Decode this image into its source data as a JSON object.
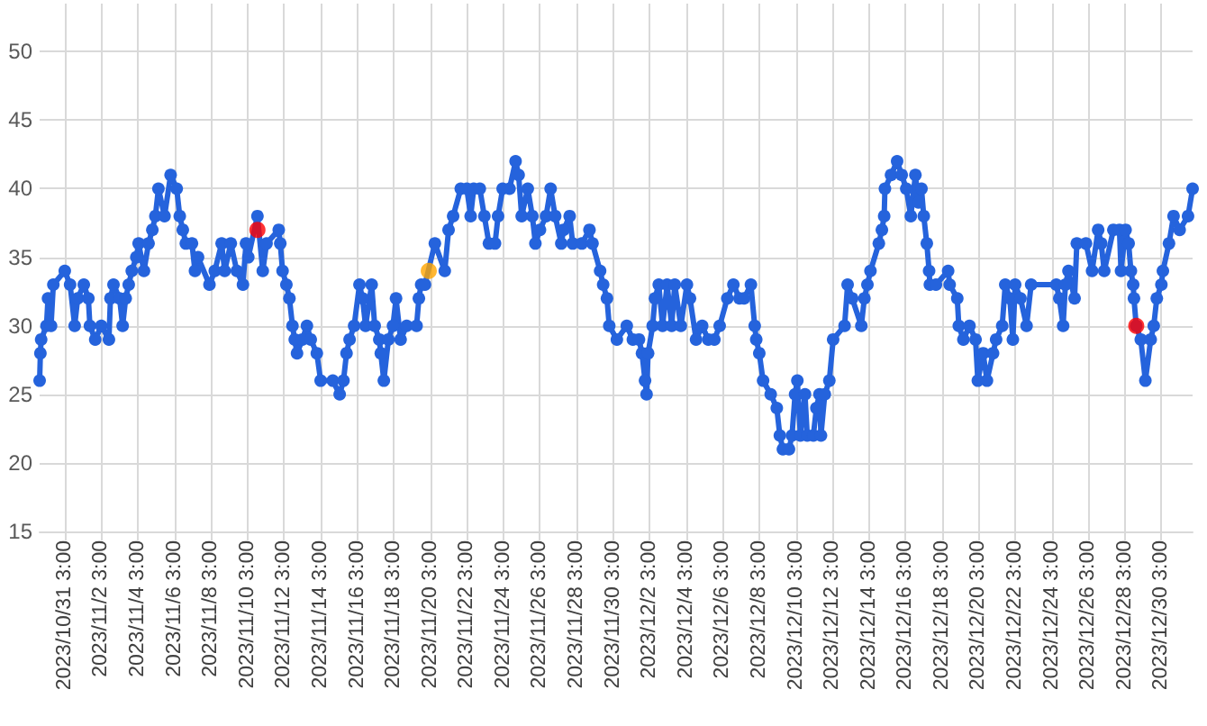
{
  "chart_data": {
    "type": "line",
    "grid": true,
    "marker": "circle",
    "line_style": "solid",
    "xlim": [
      "2023-10-29T18:00",
      "2023-12-31T20:00"
    ],
    "xticks": [
      {
        "value": "2023-10-31T03:00",
        "label": "2023/10/31 3:00"
      },
      {
        "value": "2023-11-02T03:00",
        "label": "2023/11/2 3:00"
      },
      {
        "value": "2023-11-04T03:00",
        "label": "2023/11/4 3:00"
      },
      {
        "value": "2023-11-06T03:00",
        "label": "2023/11/6 3:00"
      },
      {
        "value": "2023-11-08T03:00",
        "label": "2023/11/8 3:00"
      },
      {
        "value": "2023-11-10T03:00",
        "label": "2023/11/10 3:00"
      },
      {
        "value": "2023-11-12T03:00",
        "label": "2023/11/12 3:00"
      },
      {
        "value": "2023-11-14T03:00",
        "label": "2023/11/14 3:00"
      },
      {
        "value": "2023-11-16T03:00",
        "label": "2023/11/16 3:00"
      },
      {
        "value": "2023-11-18T03:00",
        "label": "2023/11/18 3:00"
      },
      {
        "value": "2023-11-20T03:00",
        "label": "2023/11/20 3:00"
      },
      {
        "value": "2023-11-22T03:00",
        "label": "2023/11/22 3:00"
      },
      {
        "value": "2023-11-24T03:00",
        "label": "2023/11/24 3:00"
      },
      {
        "value": "2023-11-26T03:00",
        "label": "2023/11/26 3:00"
      },
      {
        "value": "2023-11-28T03:00",
        "label": "2023/11/28 3:00"
      },
      {
        "value": "2023-11-30T03:00",
        "label": "2023/11/30 3:00"
      },
      {
        "value": "2023-12-02T03:00",
        "label": "2023/12/2 3:00"
      },
      {
        "value": "2023-12-04T03:00",
        "label": "2023/12/4 3:00"
      },
      {
        "value": "2023-12-06T03:00",
        "label": "2023/12/6 3:00"
      },
      {
        "value": "2023-12-08T03:00",
        "label": "2023/12/8 3:00"
      },
      {
        "value": "2023-12-10T03:00",
        "label": "2023/12/10 3:00"
      },
      {
        "value": "2023-12-12T03:00",
        "label": "2023/12/12 3:00"
      },
      {
        "value": "2023-12-14T03:00",
        "label": "2023/12/14 3:00"
      },
      {
        "value": "2023-12-16T03:00",
        "label": "2023/12/16 3:00"
      },
      {
        "value": "2023-12-18T03:00",
        "label": "2023/12/18 3:00"
      },
      {
        "value": "2023-12-20T03:00",
        "label": "2023/12/20 3:00"
      },
      {
        "value": "2023-12-22T03:00",
        "label": "2023/12/22 3:00"
      },
      {
        "value": "2023-12-24T03:00",
        "label": "2023/12/24 3:00"
      },
      {
        "value": "2023-12-26T03:00",
        "label": "2023/12/26 3:00"
      },
      {
        "value": "2023-12-28T03:00",
        "label": "2023/12/28 3:00"
      },
      {
        "value": "2023-12-30T03:00",
        "label": "2023/12/30 3:00"
      }
    ],
    "ylim": [
      15,
      53.5
    ],
    "yticks": [
      15,
      20,
      25,
      30,
      35,
      40,
      45,
      50
    ],
    "series": [
      {
        "color": "#2563dc",
        "x": [
          "2023-10-29T18:00",
          "2023-10-29T19:00",
          "2023-10-29T20:00",
          "2023-10-30T03:00",
          "2023-10-30T05:00",
          "2023-10-30T09:00",
          "2023-10-30T12:00",
          "2023-10-31T03:00",
          "2023-10-31T10:00",
          "2023-10-31T16:00",
          "2023-10-31T20:00",
          "2023-11-01T04:00",
          "2023-11-01T10:00",
          "2023-11-01T12:00",
          "2023-11-01T19:00",
          "2023-11-02T03:00",
          "2023-11-02T13:00",
          "2023-11-02T15:00",
          "2023-11-02T19:00",
          "2023-11-03T03:00",
          "2023-11-03T07:00",
          "2023-11-03T11:00",
          "2023-11-03T15:00",
          "2023-11-03T19:00",
          "2023-11-04T01:00",
          "2023-11-04T04:00",
          "2023-11-04T11:00",
          "2023-11-04T17:00",
          "2023-11-04T22:00",
          "2023-11-05T02:00",
          "2023-11-05T06:00",
          "2023-11-05T14:00",
          "2023-11-05T22:00",
          "2023-11-06T06:00",
          "2023-11-06T10:00",
          "2023-11-06T14:00",
          "2023-11-06T18:00",
          "2023-11-07T02:00",
          "2023-11-07T06:00",
          "2023-11-07T10:00",
          "2023-11-08T01:00",
          "2023-11-08T08:00",
          "2023-11-08T17:00",
          "2023-11-08T21:00",
          "2023-11-09T05:00",
          "2023-11-09T13:00",
          "2023-11-09T21:00",
          "2023-11-10T01:00",
          "2023-11-10T04:00",
          "2023-11-10T16:00",
          "2023-11-10T23:00",
          "2023-11-11T04:00",
          "2023-11-11T20:00",
          "2023-11-11T22:00",
          "2023-11-12T01:00",
          "2023-11-12T06:00",
          "2023-11-12T10:00",
          "2023-11-12T14:00",
          "2023-11-12T17:00",
          "2023-11-12T20:00",
          "2023-11-13T03:00",
          "2023-11-13T09:00",
          "2023-11-13T14:00",
          "2023-11-13T22:00",
          "2023-11-14T03:00",
          "2023-11-14T19:00",
          "2023-11-15T04:00",
          "2023-11-15T09:00",
          "2023-11-15T13:00",
          "2023-11-15T17:00",
          "2023-11-15T23:00",
          "2023-11-16T06:00",
          "2023-11-16T10:00",
          "2023-11-16T14:00",
          "2023-11-16T22:00",
          "2023-11-17T02:00",
          "2023-11-17T08:00",
          "2023-11-17T10:00",
          "2023-11-17T14:00",
          "2023-11-17T20:00",
          "2023-11-18T02:00",
          "2023-11-18T06:00",
          "2023-11-18T12:00",
          "2023-11-18T20:00",
          "2023-11-19T09:00",
          "2023-11-19T12:00",
          "2023-11-19T15:00",
          "2023-11-19T20:00",
          "2023-11-20T09:00",
          "2023-11-20T22:00",
          "2023-11-21T03:00",
          "2023-11-21T09:00",
          "2023-11-21T19:00",
          "2023-11-22T03:00",
          "2023-11-22T08:00",
          "2023-11-22T12:00",
          "2023-11-22T20:00",
          "2023-11-23T02:00",
          "2023-11-23T08:00",
          "2023-11-23T16:00",
          "2023-11-23T20:00",
          "2023-11-24T02:00",
          "2023-11-24T11:00",
          "2023-11-24T19:00",
          "2023-11-24T23:00",
          "2023-11-25T03:00",
          "2023-11-25T11:00",
          "2023-11-25T17:00",
          "2023-11-25T21:00",
          "2023-11-26T03:00",
          "2023-11-26T11:00",
          "2023-11-26T17:00",
          "2023-11-26T23:00",
          "2023-11-27T07:00",
          "2023-11-27T10:00",
          "2023-11-27T18:00",
          "2023-11-27T22:00",
          "2023-11-28T10:00",
          "2023-11-28T20:00",
          "2023-11-29T00:00",
          "2023-11-29T10:00",
          "2023-11-29T14:00",
          "2023-11-29T19:00",
          "2023-11-29T22:00",
          "2023-11-30T08:00",
          "2023-11-30T21:00",
          "2023-12-01T05:00",
          "2023-12-01T13:00",
          "2023-12-01T17:00",
          "2023-12-01T21:00",
          "2023-12-01T23:00",
          "2023-12-02T01:00",
          "2023-12-02T07:00",
          "2023-12-02T10:00",
          "2023-12-02T15:00",
          "2023-12-02T20:00",
          "2023-12-03T02:00",
          "2023-12-03T08:00",
          "2023-12-03T12:00",
          "2023-12-03T20:00",
          "2023-12-04T04:00",
          "2023-12-04T08:00",
          "2023-12-04T16:00",
          "2023-12-05T00:00",
          "2023-12-05T08:00",
          "2023-12-05T16:00",
          "2023-12-05T23:00",
          "2023-12-06T09:00",
          "2023-12-06T17:00",
          "2023-12-07T01:00",
          "2023-12-07T07:00",
          "2023-12-07T16:00",
          "2023-12-07T21:00",
          "2023-12-07T23:00",
          "2023-12-08T03:00",
          "2023-12-08T08:00",
          "2023-12-08T18:00",
          "2023-12-09T02:00",
          "2023-12-09T06:00",
          "2023-12-09T10:00",
          "2023-12-09T18:00",
          "2023-12-09T22:00",
          "2023-12-10T02:00",
          "2023-12-10T05:00",
          "2023-12-10T09:00",
          "2023-12-10T15:00",
          "2023-12-10T18:00",
          "2023-12-11T02:00",
          "2023-12-11T06:00",
          "2023-12-11T10:00",
          "2023-12-11T12:00",
          "2023-12-11T17:00",
          "2023-12-11T23:00",
          "2023-12-12T04:00",
          "2023-12-12T19:00",
          "2023-12-12T23:00",
          "2023-12-13T05:00",
          "2023-12-13T17:00",
          "2023-12-13T21:00",
          "2023-12-14T01:00",
          "2023-12-14T05:00",
          "2023-12-14T16:00",
          "2023-12-14T20:00",
          "2023-12-14T23:00",
          "2023-12-15T00:00",
          "2023-12-15T08:00",
          "2023-12-15T16:00",
          "2023-12-15T22:00",
          "2023-12-16T04:00",
          "2023-12-16T10:00",
          "2023-12-16T16:00",
          "2023-12-16T20:00",
          "2023-12-17T00:00",
          "2023-12-17T03:00",
          "2023-12-17T07:00",
          "2023-12-17T10:00",
          "2023-12-17T11:00",
          "2023-12-17T19:00",
          "2023-12-18T11:00",
          "2023-12-18T13:00",
          "2023-12-18T23:00",
          "2023-12-19T01:00",
          "2023-12-19T07:00",
          "2023-12-19T15:00",
          "2023-12-19T23:00",
          "2023-12-20T02:00",
          "2023-12-20T09:00",
          "2023-12-20T14:00",
          "2023-12-20T22:00",
          "2023-12-21T02:00",
          "2023-12-21T10:00",
          "2023-12-21T14:00",
          "2023-12-21T20:00",
          "2023-12-22T00:00",
          "2023-12-22T03:00",
          "2023-12-22T10:00",
          "2023-12-22T18:00",
          "2023-12-23T00:00",
          "2023-12-24T09:00",
          "2023-12-24T13:00",
          "2023-12-24T18:00",
          "2023-12-24T21:00",
          "2023-12-25T01:00",
          "2023-12-25T09:00",
          "2023-12-25T12:00",
          "2023-12-26T00:00",
          "2023-12-26T08:00",
          "2023-12-26T16:00",
          "2023-12-26T20:00",
          "2023-12-27T00:00",
          "2023-12-27T12:00",
          "2023-12-27T20:00",
          "2023-12-27T22:00",
          "2023-12-28T04:00",
          "2023-12-28T08:00",
          "2023-12-28T11:00",
          "2023-12-28T14:00",
          "2023-12-28T15:00",
          "2023-12-28T18:00",
          "2023-12-29T00:00",
          "2023-12-29T06:00",
          "2023-12-29T13:00",
          "2023-12-29T17:00",
          "2023-12-29T21:00",
          "2023-12-30T03:00",
          "2023-12-30T05:00",
          "2023-12-30T13:00",
          "2023-12-30T19:00",
          "2023-12-31T03:00",
          "2023-12-31T14:00",
          "2023-12-31T20:00"
        ],
        "values": [
          26,
          28,
          29,
          30,
          32,
          30,
          33,
          34,
          33,
          30,
          32,
          33,
          32,
          30,
          29,
          30,
          29,
          32,
          33,
          32,
          30,
          32,
          33,
          34,
          35,
          36,
          34,
          36,
          37,
          38,
          40,
          38,
          41,
          40,
          38,
          37,
          36,
          36,
          34,
          35,
          33,
          34,
          36,
          34,
          36,
          34,
          33,
          36,
          35,
          38,
          34,
          36,
          37,
          36,
          34,
          33,
          32,
          30,
          29,
          28,
          29,
          30,
          29,
          28,
          26,
          26,
          25,
          26,
          28,
          29,
          30,
          33,
          32,
          30,
          33,
          30,
          29,
          28,
          26,
          29,
          30,
          32,
          29,
          30,
          30,
          32,
          33,
          33,
          36,
          34,
          37,
          38,
          40,
          40,
          38,
          40,
          40,
          38,
          36,
          36,
          38,
          40,
          40,
          42,
          41,
          38,
          40,
          38,
          36,
          37,
          38,
          40,
          38,
          36,
          37,
          38,
          36,
          36,
          37,
          36,
          34,
          33,
          32,
          30,
          29,
          30,
          29,
          29,
          28,
          26,
          25,
          28,
          30,
          32,
          33,
          30,
          33,
          30,
          33,
          30,
          33,
          32,
          29,
          30,
          29,
          29,
          30,
          32,
          33,
          32,
          32,
          33,
          30,
          29,
          28,
          26,
          25,
          24,
          22,
          21,
          21,
          22,
          25,
          26,
          22,
          25,
          22,
          22,
          24,
          25,
          22,
          25,
          26,
          29,
          30,
          33,
          32,
          30,
          32,
          33,
          34,
          36,
          37,
          38,
          40,
          41,
          42,
          41,
          40,
          38,
          41,
          39,
          40,
          38,
          36,
          34,
          33,
          33,
          34,
          33,
          32,
          30,
          29,
          30,
          29,
          26,
          28,
          26,
          28,
          29,
          30,
          33,
          32,
          29,
          33,
          32,
          30,
          33,
          33,
          32,
          30,
          33,
          34,
          32,
          36,
          36,
          34,
          37,
          36,
          34,
          37,
          37,
          34,
          37,
          36,
          34,
          33,
          32,
          30,
          29,
          26,
          29,
          30,
          32,
          33,
          34,
          36,
          38,
          37,
          38,
          40
        ]
      },
      {
        "type": "scatter",
        "color": "#ff0000",
        "x": [
          "2023-11-10T16:00",
          "2023-12-28T18:00"
        ],
        "values": [
          37,
          30
        ]
      },
      {
        "type": "scatter",
        "color": "#ffa500",
        "x": [
          "2023-11-20T01:00"
        ],
        "values": [
          34
        ]
      }
    ]
  }
}
